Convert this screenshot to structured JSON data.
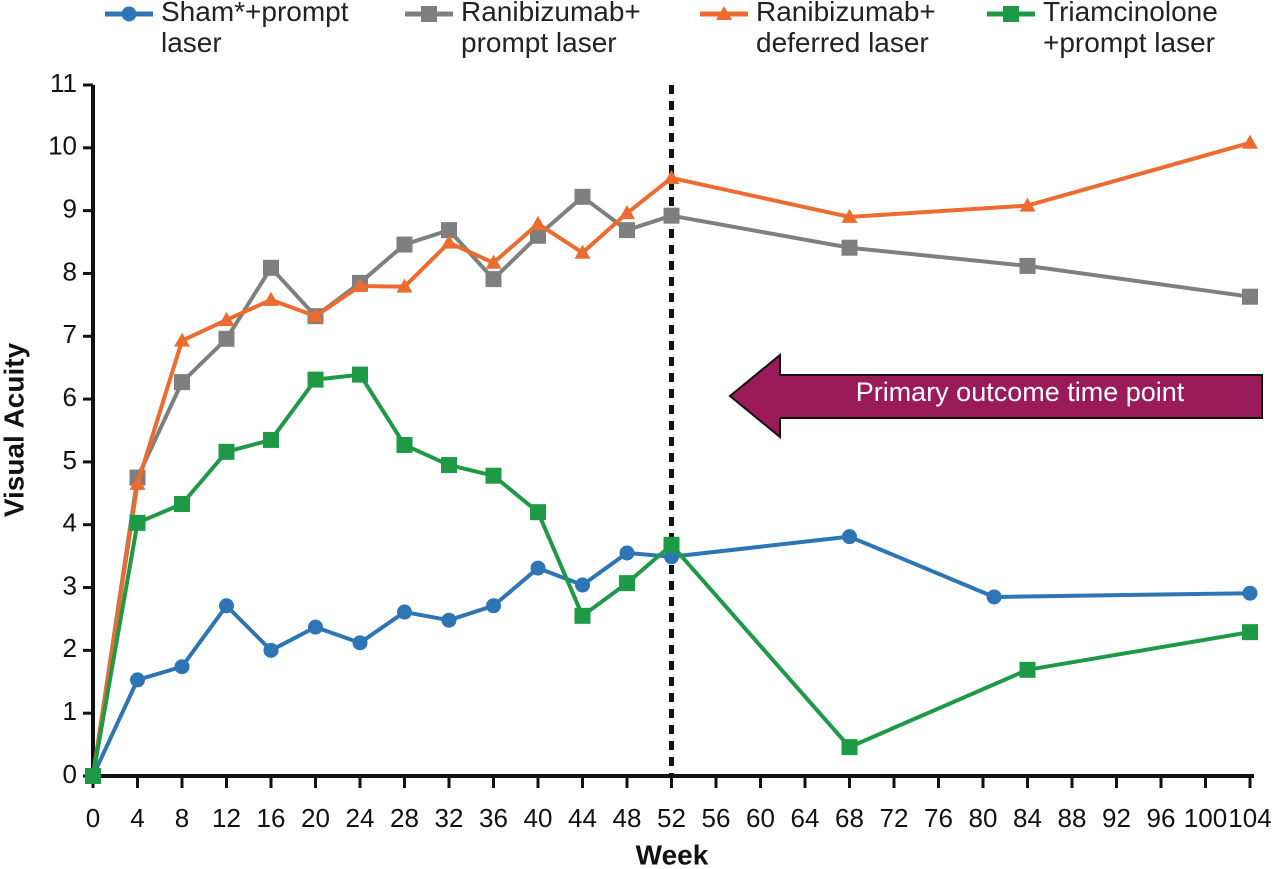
{
  "chart_data": {
    "type": "line",
    "x_label": "Week",
    "y_label": "Visual Acuity",
    "xlim": [
      0,
      104
    ],
    "xticks": [
      0,
      4,
      8,
      12,
      16,
      20,
      24,
      28,
      32,
      36,
      40,
      44,
      48,
      52,
      56,
      60,
      64,
      68,
      72,
      76,
      80,
      84,
      88,
      92,
      96,
      100,
      104
    ],
    "ylim": [
      0,
      11
    ],
    "yticks": [
      0,
      1,
      2,
      3,
      4,
      5,
      6,
      7,
      8,
      9,
      10,
      11
    ],
    "reference_line": 52,
    "annotation": "Primary outcome time point",
    "series": [
      {
        "name": "Sham*+prompt laser",
        "color": "#2e75b6",
        "marker": "circle",
        "x": [
          0,
          4,
          8,
          12,
          16,
          20,
          24,
          28,
          32,
          36,
          40,
          44,
          48,
          52,
          68,
          81,
          104
        ],
        "values": [
          0,
          1.53,
          1.74,
          2.71,
          2.0,
          2.37,
          2.12,
          2.61,
          2.48,
          2.71,
          3.31,
          3.04,
          3.55,
          3.49,
          3.81,
          2.85,
          2.91
        ]
      },
      {
        "name": "Ranibizumab+ prompt laser",
        "color": "#7f7f7f",
        "marker": "square",
        "x": [
          0,
          4,
          8,
          12,
          16,
          20,
          24,
          28,
          32,
          36,
          40,
          44,
          48,
          52,
          68,
          84,
          104
        ],
        "values": [
          0,
          4.75,
          6.27,
          6.96,
          8.09,
          7.32,
          7.85,
          8.46,
          8.69,
          7.91,
          8.6,
          9.22,
          8.69,
          8.92,
          8.41,
          8.12,
          7.63
        ]
      },
      {
        "name": "Ranibizumab+ deferred laser",
        "color": "#ed6b2f",
        "marker": "triangle",
        "x": [
          0,
          4,
          8,
          12,
          16,
          20,
          24,
          28,
          32,
          36,
          40,
          44,
          48,
          52,
          68,
          84,
          104
        ],
        "values": [
          0,
          4.65,
          6.93,
          7.26,
          7.58,
          7.32,
          7.8,
          7.79,
          8.49,
          8.17,
          8.79,
          8.33,
          8.96,
          9.52,
          8.9,
          9.08,
          10.08
        ]
      },
      {
        "name": "Triamcinolone +prompt laser",
        "color": "#1e9a46",
        "marker": "square",
        "x": [
          0,
          4,
          8,
          12,
          16,
          20,
          24,
          28,
          32,
          36,
          40,
          44,
          48,
          52,
          68,
          84,
          104
        ],
        "values": [
          0,
          4.03,
          4.33,
          5.16,
          5.35,
          6.31,
          6.39,
          5.27,
          4.95,
          4.78,
          4.2,
          2.55,
          3.07,
          3.68,
          0.46,
          1.69,
          2.29
        ]
      }
    ]
  }
}
